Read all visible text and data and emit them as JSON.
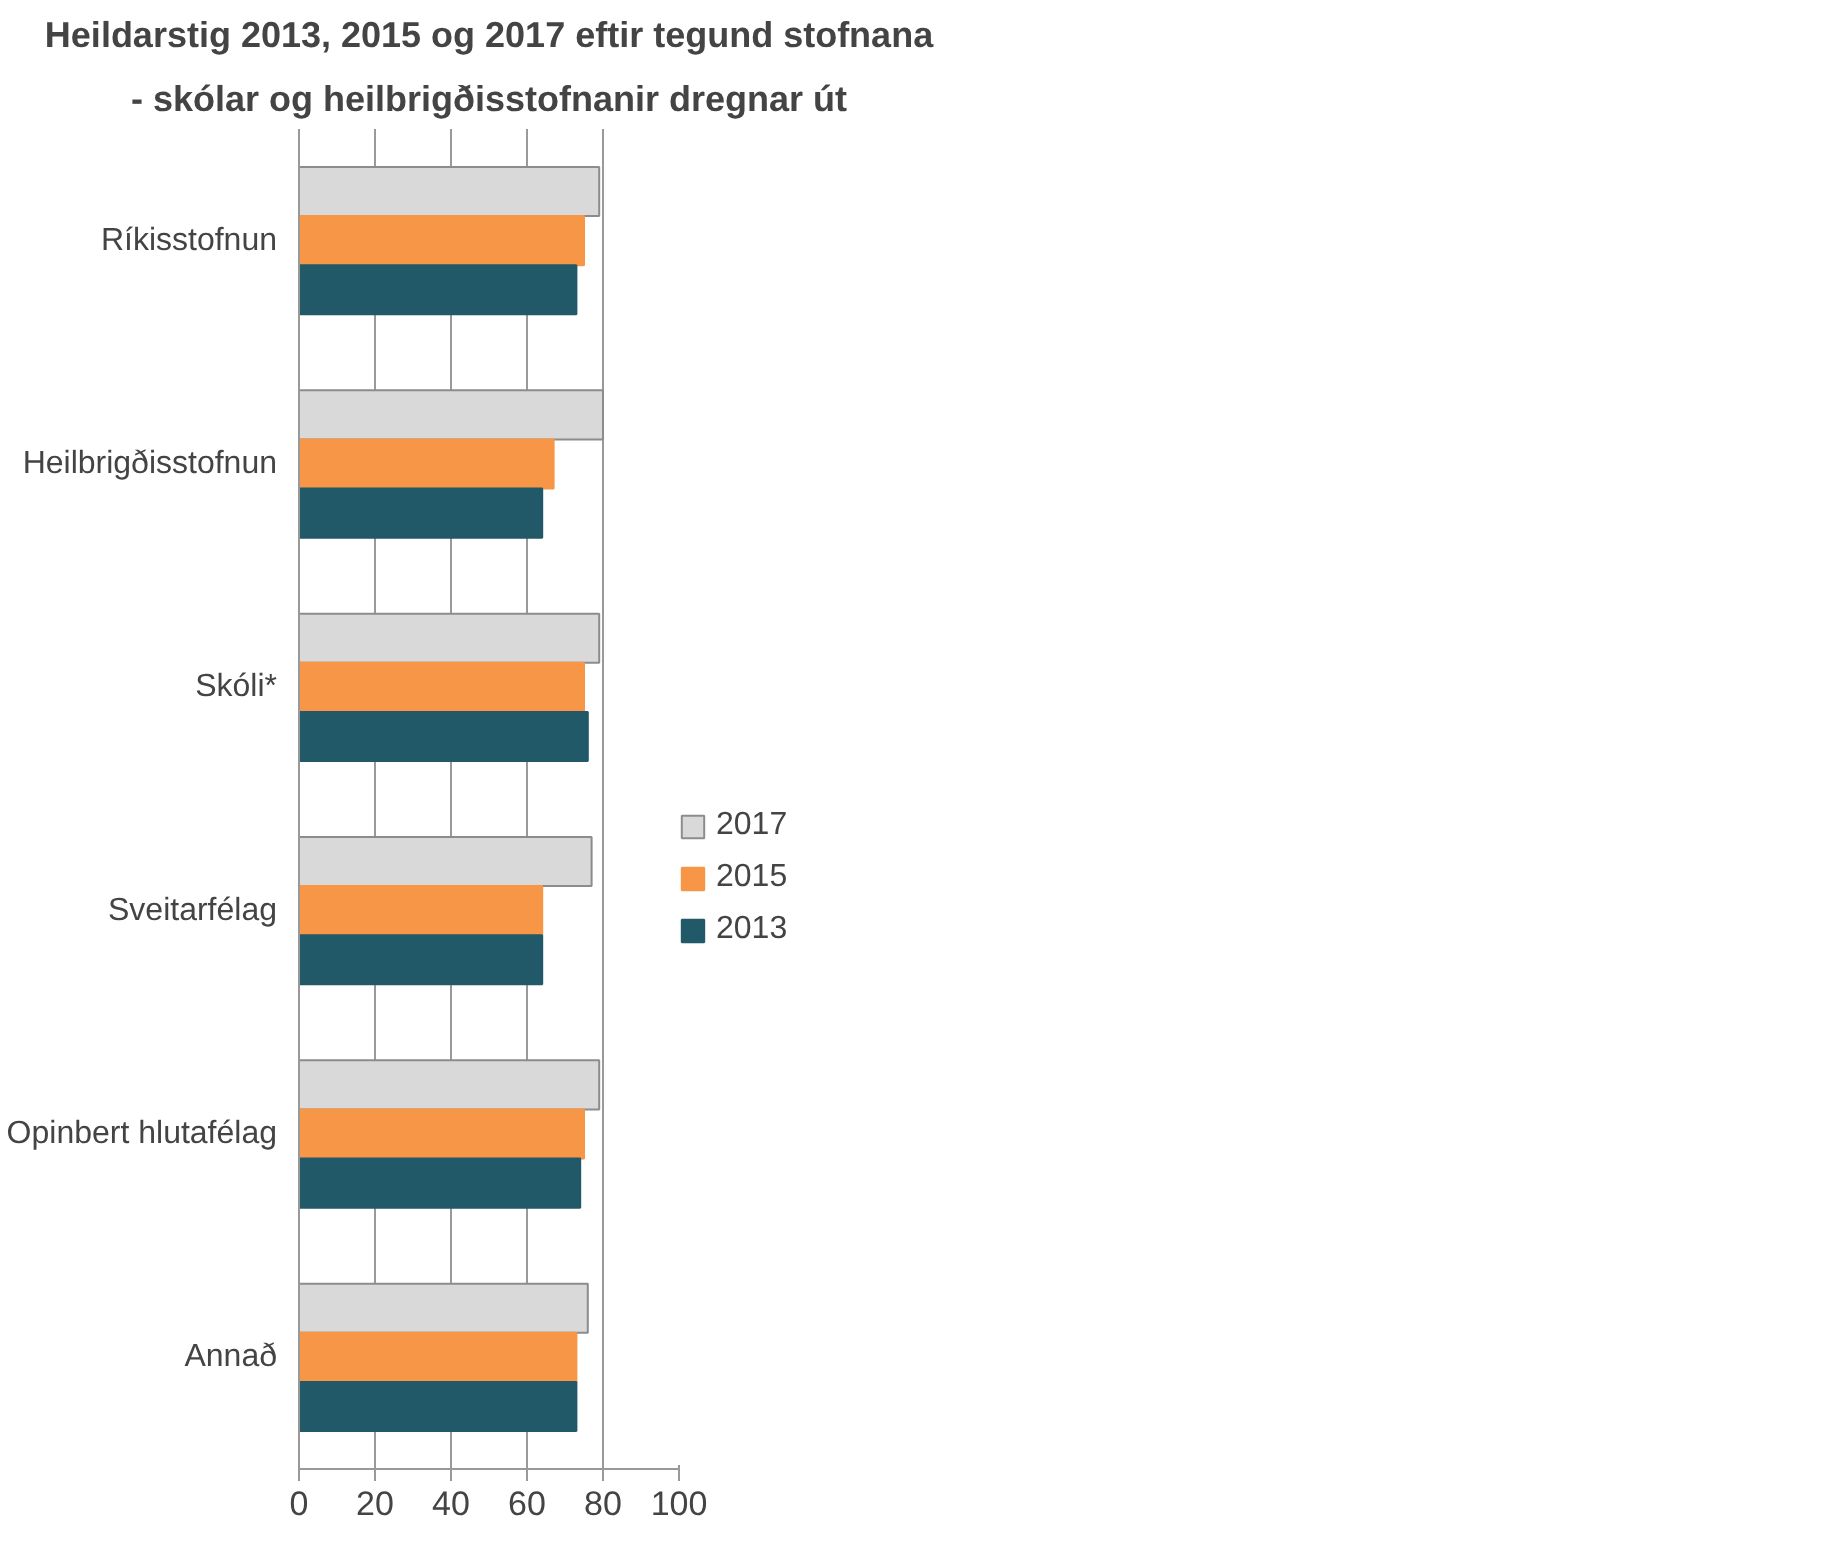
{
  "chart_data": {
    "type": "bar",
    "orientation": "horizontal",
    "title": "Heildarstig 2013, 2015 og 2017 eftir tegund stofnana",
    "subtitle": "- skólar og heilbrigðisstofnanir dregnar út",
    "categories": [
      "Ríkisstofnun",
      "Heilbrigðisstofnun",
      "Skóli*",
      "Sveitarfélag",
      "Opinbert hlutafélag",
      "Annað"
    ],
    "series": [
      {
        "name": "2017",
        "color": "#d9d9d9",
        "values": [
          79,
          80,
          79,
          77,
          79,
          76
        ]
      },
      {
        "name": "2015",
        "color": "#f79646",
        "values": [
          75,
          67,
          75,
          64,
          75,
          73
        ]
      },
      {
        "name": "2013",
        "color": "#215968",
        "values": [
          73,
          64,
          76,
          64,
          74,
          73
        ]
      }
    ],
    "xlim": [
      0,
      100
    ],
    "xticks": [
      0,
      20,
      40,
      60,
      80,
      100
    ],
    "grid": "x",
    "legend": "right"
  }
}
